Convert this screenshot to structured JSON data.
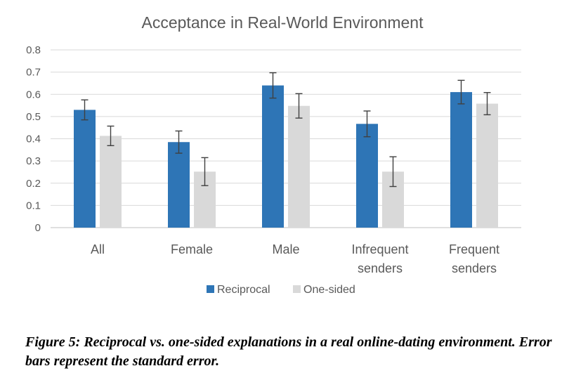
{
  "chart_data": {
    "type": "bar",
    "title": "Acceptance in Real-World Environment",
    "categories": [
      [
        "All"
      ],
      [
        "Female"
      ],
      [
        "Male"
      ],
      [
        "Infrequent",
        "senders"
      ],
      [
        "Frequent",
        "senders"
      ]
    ],
    "series": [
      {
        "name": "Reciprocal",
        "color": "#2e75b6",
        "values": [
          0.53,
          0.385,
          0.64,
          0.467,
          0.61
        ],
        "errors": [
          0.045,
          0.05,
          0.057,
          0.058,
          0.053
        ]
      },
      {
        "name": "One-sided",
        "color": "#d9d9d9",
        "values": [
          0.413,
          0.252,
          0.548,
          0.252,
          0.558
        ],
        "errors": [
          0.044,
          0.063,
          0.055,
          0.067,
          0.05
        ]
      }
    ],
    "yticks": [
      "0",
      "0.1",
      "0.2",
      "0.3",
      "0.4",
      "0.5",
      "0.6",
      "0.7",
      "0.8"
    ],
    "ylim": [
      0,
      0.8
    ],
    "grid": true,
    "legend_position": "bottom"
  },
  "caption": "Figure 5: Reciprocal vs. one-sided explanations in a real online-dating environment. Error bars represent the standard error."
}
